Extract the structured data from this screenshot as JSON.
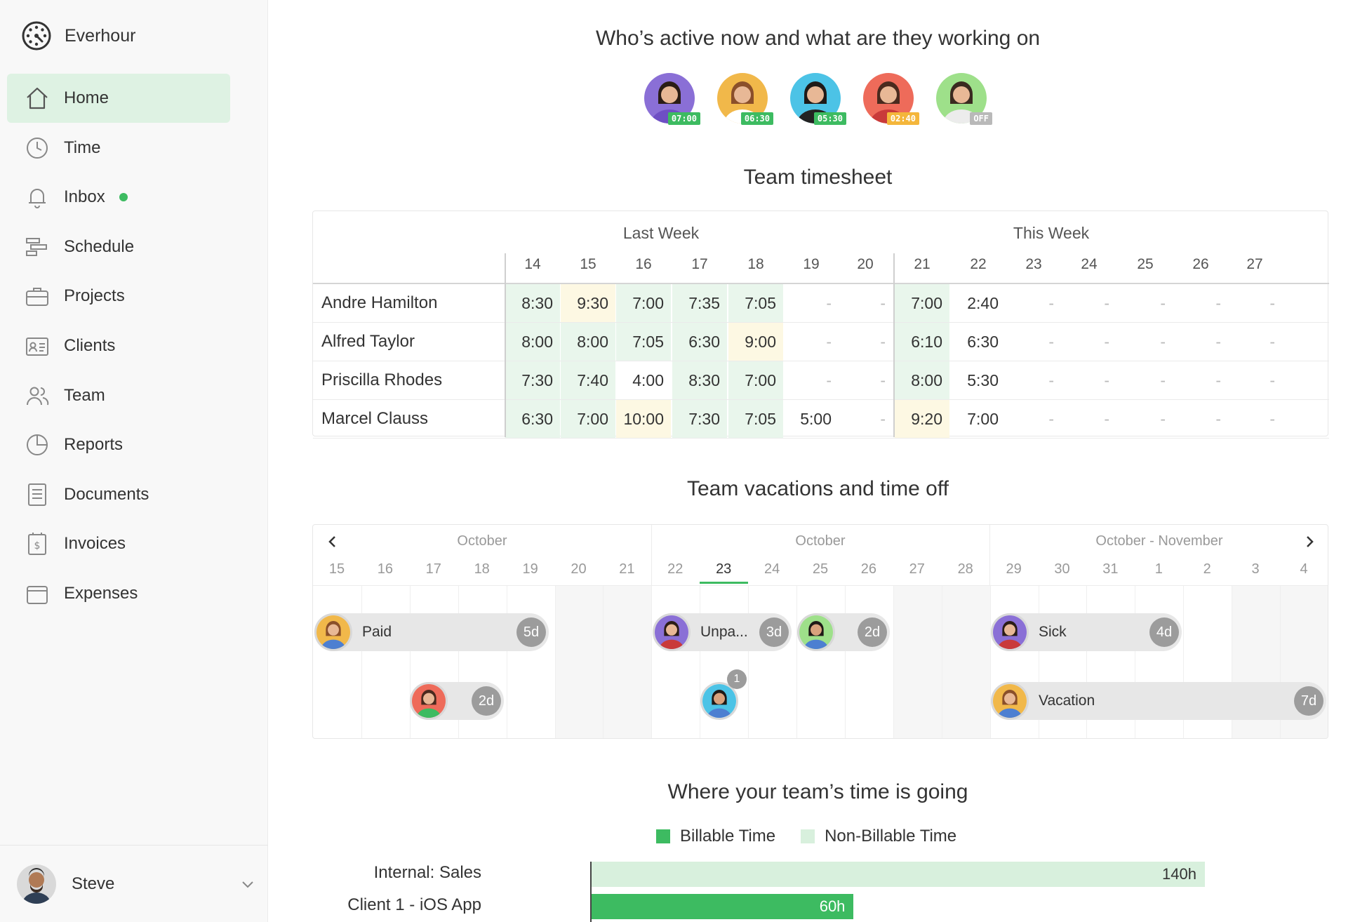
{
  "app": {
    "name": "Everhour"
  },
  "sidebar": {
    "items": [
      {
        "label": "Home",
        "icon": "home-icon",
        "active": true
      },
      {
        "label": "Time",
        "icon": "clock-icon"
      },
      {
        "label": "Inbox",
        "icon": "bell-icon",
        "dot": true
      },
      {
        "label": "Schedule",
        "icon": "schedule-icon"
      },
      {
        "label": "Projects",
        "icon": "briefcase-icon"
      },
      {
        "label": "Clients",
        "icon": "contact-card-icon"
      },
      {
        "label": "Team",
        "icon": "team-icon"
      },
      {
        "label": "Reports",
        "icon": "pie-chart-icon"
      },
      {
        "label": "Documents",
        "icon": "document-icon"
      },
      {
        "label": "Invoices",
        "icon": "invoice-icon"
      },
      {
        "label": "Expenses",
        "icon": "wallet-icon"
      }
    ],
    "user": {
      "name": "Steve"
    }
  },
  "active_now": {
    "title": "Who’s active now and what are they working on",
    "people": [
      {
        "tag": "07:00",
        "tag_color": "#3dbb61",
        "bg": "#8a6fd6"
      },
      {
        "tag": "06:30",
        "tag_color": "#3dbb61",
        "bg": "#f1b84a"
      },
      {
        "tag": "05:30",
        "tag_color": "#3dbb61",
        "bg": "#4cc3e6"
      },
      {
        "tag": "02:40",
        "tag_color": "#f4b63b",
        "bg": "#ee6b5a"
      },
      {
        "tag": "OFF",
        "tag_color": "#b9b9b9",
        "bg": "#9ee08a"
      }
    ]
  },
  "timesheet": {
    "title": "Team timesheet",
    "last_week_label": "Last Week",
    "this_week_label": "This Week",
    "days": [
      "14",
      "15",
      "16",
      "17",
      "18",
      "19",
      "20",
      "21",
      "22",
      "23",
      "24",
      "25",
      "26",
      "27"
    ],
    "rows": [
      {
        "name": "Andre Hamilton",
        "values": [
          "8:30",
          "9:30",
          "7:00",
          "7:35",
          "7:05",
          "-",
          "-",
          "7:00",
          "2:40",
          "-",
          "-",
          "-",
          "-",
          "-"
        ],
        "styles": [
          "g",
          "y",
          "g",
          "g",
          "g",
          "",
          "",
          "g",
          "",
          "",
          "",
          "",
          "",
          ""
        ]
      },
      {
        "name": "Alfred Taylor",
        "values": [
          "8:00",
          "8:00",
          "7:05",
          "6:30",
          "9:00",
          "-",
          "-",
          "6:10",
          "6:30",
          "-",
          "-",
          "-",
          "-",
          "-"
        ],
        "styles": [
          "g",
          "g",
          "g",
          "g",
          "y",
          "",
          "",
          "g",
          "",
          "",
          "",
          "",
          "",
          ""
        ]
      },
      {
        "name": "Priscilla Rhodes",
        "values": [
          "7:30",
          "7:40",
          "4:00",
          "8:30",
          "7:00",
          "-",
          "-",
          "8:00",
          "5:30",
          "-",
          "-",
          "-",
          "-",
          "-"
        ],
        "styles": [
          "g",
          "g",
          "",
          "g",
          "g",
          "",
          "",
          "g",
          "",
          "",
          "",
          "",
          "",
          ""
        ]
      },
      {
        "name": "Marcel Clauss",
        "values": [
          "6:30",
          "7:00",
          "10:00",
          "7:30",
          "7:05",
          "5:00",
          "-",
          "9:20",
          "7:00",
          "-",
          "-",
          "-",
          "-",
          "-"
        ],
        "styles": [
          "g",
          "g",
          "y",
          "g",
          "g",
          "",
          "",
          "y",
          "",
          "",
          "",
          "",
          "",
          ""
        ]
      }
    ]
  },
  "vacations": {
    "title": "Team vacations and time off",
    "months": [
      "October",
      "October",
      "October - November"
    ],
    "days": [
      "15",
      "16",
      "17",
      "18",
      "19",
      "20",
      "21",
      "22",
      "23",
      "24",
      "25",
      "26",
      "27",
      "28",
      "29",
      "30",
      "31",
      "1",
      "2",
      "3",
      "4"
    ],
    "today": "23",
    "entries": [
      {
        "label": "Paid",
        "count": "5d",
        "bg": "#f1b84a"
      },
      {
        "label": "Unpa...",
        "count": "3d",
        "bg": "#8a6fd6"
      },
      {
        "label": "",
        "count": "2d",
        "bg": "#9ee08a"
      },
      {
        "label": "Sick",
        "count": "4d",
        "bg": "#8a6fd6"
      },
      {
        "label": "",
        "count": "2d",
        "bg": "#ee6b5a"
      },
      {
        "label": "",
        "count": "",
        "badge": "1",
        "bg": "#4cc3e6"
      },
      {
        "label": "Vacation",
        "count": "7d",
        "bg": "#f1b84a"
      }
    ]
  },
  "time_going": {
    "title": "Where your team’s time is going",
    "legend": {
      "billable": "Billable Time",
      "non_billable": "Non-Billable Time"
    },
    "colors": {
      "billable": "#3dbb61",
      "non_billable": "#d8f0dd"
    },
    "bars": [
      {
        "label": "Internal: Sales",
        "value": "140h",
        "hours": 140,
        "type": "non_billable"
      },
      {
        "label": "Client 1 - iOS App",
        "value": "60h",
        "hours": 60,
        "type": "billable"
      }
    ]
  }
}
